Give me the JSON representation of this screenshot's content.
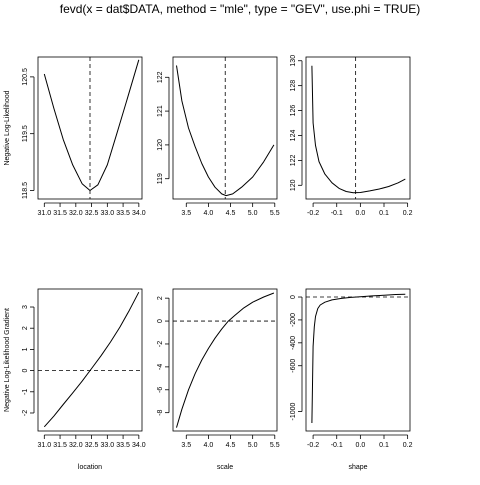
{
  "title": "fevd(x = dat$DATA, method = \"mle\", type = \"GEV\", use.phi = TRUE)",
  "chart_data": [
    {
      "id": "nll-location",
      "type": "line",
      "row": 0,
      "col": 0,
      "ylabel": "Negative Log-Likelihood",
      "xlabel": "",
      "xlim": [
        30.8,
        34.1
      ],
      "ylim": [
        118.35,
        120.85
      ],
      "xticks": [
        {
          "v": 31.0,
          "t": "31.0"
        },
        {
          "v": 31.5,
          "t": "31.5"
        },
        {
          "v": 32.0,
          "t": "32.0"
        },
        {
          "v": 32.5,
          "t": "32.5"
        },
        {
          "v": 33.0,
          "t": "33.0"
        },
        {
          "v": 33.5,
          "t": "33.5"
        },
        {
          "v": 34.0,
          "t": "34.0"
        }
      ],
      "yticks": [
        {
          "v": 118.5,
          "t": "118.5"
        },
        {
          "v": 119.5,
          "t": "119.5"
        },
        {
          "v": 120.5,
          "t": "120.5"
        }
      ],
      "vline": 32.45,
      "x": [
        31.0,
        31.3,
        31.6,
        31.9,
        32.2,
        32.45,
        32.7,
        33.0,
        33.3,
        33.6,
        34.0
      ],
      "y": [
        120.55,
        119.95,
        119.4,
        118.95,
        118.62,
        118.5,
        118.6,
        118.95,
        119.5,
        120.05,
        120.8
      ]
    },
    {
      "id": "nll-scale",
      "type": "line",
      "row": 0,
      "col": 1,
      "ylabel": "",
      "xlabel": "",
      "xlim": [
        3.2,
        5.55
      ],
      "ylim": [
        118.4,
        122.6
      ],
      "xticks": [
        {
          "v": 3.5,
          "t": "3.5"
        },
        {
          "v": 4.0,
          "t": "4.0"
        },
        {
          "v": 4.5,
          "t": "4.5"
        },
        {
          "v": 5.0,
          "t": "5.0"
        },
        {
          "v": 5.5,
          "t": "5.5"
        }
      ],
      "yticks": [
        {
          "v": 119,
          "t": "119"
        },
        {
          "v": 120,
          "t": "120"
        },
        {
          "v": 121,
          "t": "121"
        },
        {
          "v": 122,
          "t": "122"
        }
      ],
      "vline": 4.38,
      "x": [
        3.28,
        3.4,
        3.55,
        3.7,
        3.85,
        4.0,
        4.15,
        4.3,
        4.4,
        4.55,
        4.75,
        5.0,
        5.25,
        5.48
      ],
      "y": [
        122.35,
        121.3,
        120.5,
        119.95,
        119.45,
        119.05,
        118.75,
        118.55,
        118.5,
        118.55,
        118.75,
        119.05,
        119.5,
        120.0
      ]
    },
    {
      "id": "nll-shape",
      "type": "line",
      "row": 0,
      "col": 2,
      "ylabel": "",
      "xlabel": "",
      "xlim": [
        -0.23,
        0.21
      ],
      "ylim": [
        118.9,
        130.3
      ],
      "xticks": [
        {
          "v": -0.2,
          "t": "-0.2"
        },
        {
          "v": -0.1,
          "t": "-0.1"
        },
        {
          "v": 0.0,
          "t": "0.0"
        },
        {
          "v": 0.1,
          "t": "0.1"
        },
        {
          "v": 0.2,
          "t": "0.2"
        }
      ],
      "yticks": [
        {
          "v": 120,
          "t": "120"
        },
        {
          "v": 122,
          "t": "122"
        },
        {
          "v": 124,
          "t": "124"
        },
        {
          "v": 126,
          "t": "126"
        },
        {
          "v": 128,
          "t": "128"
        },
        {
          "v": 130,
          "t": "130"
        }
      ],
      "vline": -0.02,
      "x": [
        -0.205,
        -0.2,
        -0.19,
        -0.175,
        -0.15,
        -0.12,
        -0.09,
        -0.06,
        -0.03,
        0.0,
        0.04,
        0.08,
        0.12,
        0.16,
        0.19
      ],
      "y": [
        129.6,
        125.0,
        123.2,
        121.9,
        120.9,
        120.2,
        119.75,
        119.5,
        119.4,
        119.42,
        119.55,
        119.7,
        119.9,
        120.2,
        120.5
      ]
    },
    {
      "id": "grad-location",
      "type": "line",
      "row": 1,
      "col": 0,
      "ylabel": "Negative Log-Likelihood Gradient",
      "xlabel": "location",
      "xlim": [
        30.8,
        34.1
      ],
      "ylim": [
        -2.85,
        3.85
      ],
      "xticks": [
        {
          "v": 31.0,
          "t": "31.0"
        },
        {
          "v": 31.5,
          "t": "31.5"
        },
        {
          "v": 32.0,
          "t": "32.0"
        },
        {
          "v": 32.5,
          "t": "32.5"
        },
        {
          "v": 33.0,
          "t": "33.0"
        },
        {
          "v": 33.5,
          "t": "33.5"
        },
        {
          "v": 34.0,
          "t": "34.0"
        }
      ],
      "yticks": [
        {
          "v": -2,
          "t": "-2"
        },
        {
          "v": -1,
          "t": "-1"
        },
        {
          "v": 0,
          "t": "0"
        },
        {
          "v": 1,
          "t": "1"
        },
        {
          "v": 2,
          "t": "2"
        },
        {
          "v": 3,
          "t": "3"
        }
      ],
      "hline": 0,
      "x": [
        31.0,
        31.3,
        31.6,
        31.9,
        32.2,
        32.5,
        32.8,
        33.1,
        33.4,
        33.7,
        34.0
      ],
      "y": [
        -2.65,
        -2.15,
        -1.6,
        -1.05,
        -0.5,
        0.1,
        0.7,
        1.35,
        2.05,
        2.85,
        3.7
      ]
    },
    {
      "id": "grad-scale",
      "type": "line",
      "row": 1,
      "col": 1,
      "ylabel": "",
      "xlabel": "scale",
      "xlim": [
        3.2,
        5.55
      ],
      "ylim": [
        -9.6,
        2.8
      ],
      "xticks": [
        {
          "v": 3.5,
          "t": "3.5"
        },
        {
          "v": 4.0,
          "t": "4.0"
        },
        {
          "v": 4.5,
          "t": "4.5"
        },
        {
          "v": 5.0,
          "t": "5.0"
        },
        {
          "v": 5.5,
          "t": "5.5"
        }
      ],
      "yticks": [
        {
          "v": -8,
          "t": "-8"
        },
        {
          "v": -6,
          "t": "-6"
        },
        {
          "v": -4,
          "t": "-4"
        },
        {
          "v": -2,
          "t": "-2"
        },
        {
          "v": 0,
          "t": "0"
        },
        {
          "v": 2,
          "t": "2"
        }
      ],
      "hline": 0,
      "x": [
        3.28,
        3.4,
        3.55,
        3.7,
        3.85,
        4.0,
        4.15,
        4.3,
        4.45,
        4.6,
        4.8,
        5.0,
        5.25,
        5.48
      ],
      "y": [
        -9.3,
        -7.7,
        -6.0,
        -4.6,
        -3.4,
        -2.4,
        -1.5,
        -0.7,
        0.0,
        0.5,
        1.15,
        1.65,
        2.1,
        2.45
      ]
    },
    {
      "id": "grad-shape",
      "type": "line",
      "row": 1,
      "col": 2,
      "ylabel": "",
      "xlabel": "shape",
      "xlim": [
        -0.23,
        0.21
      ],
      "ylim": [
        -1170,
        70
      ],
      "xticks": [
        {
          "v": -0.2,
          "t": "-0.2"
        },
        {
          "v": -0.1,
          "t": "-0.1"
        },
        {
          "v": 0.0,
          "t": "0.0"
        },
        {
          "v": 0.1,
          "t": "0.1"
        },
        {
          "v": 0.2,
          "t": "0.2"
        }
      ],
      "yticks": [
        {
          "v": -1000,
          "t": "-1000"
        },
        {
          "v": -600,
          "t": "-600"
        },
        {
          "v": -400,
          "t": "-400"
        },
        {
          "v": -200,
          "t": "-200"
        },
        {
          "v": 0,
          "t": "0"
        }
      ],
      "hline": 0,
      "x": [
        -0.205,
        -0.2,
        -0.195,
        -0.19,
        -0.18,
        -0.17,
        -0.15,
        -0.12,
        -0.08,
        -0.04,
        0.0,
        0.05,
        0.1,
        0.15,
        0.19
      ],
      "y": [
        -1100,
        -430,
        -260,
        -170,
        -100,
        -70,
        -45,
        -25,
        -12,
        -3,
        3,
        10,
        16,
        22,
        25
      ]
    }
  ]
}
